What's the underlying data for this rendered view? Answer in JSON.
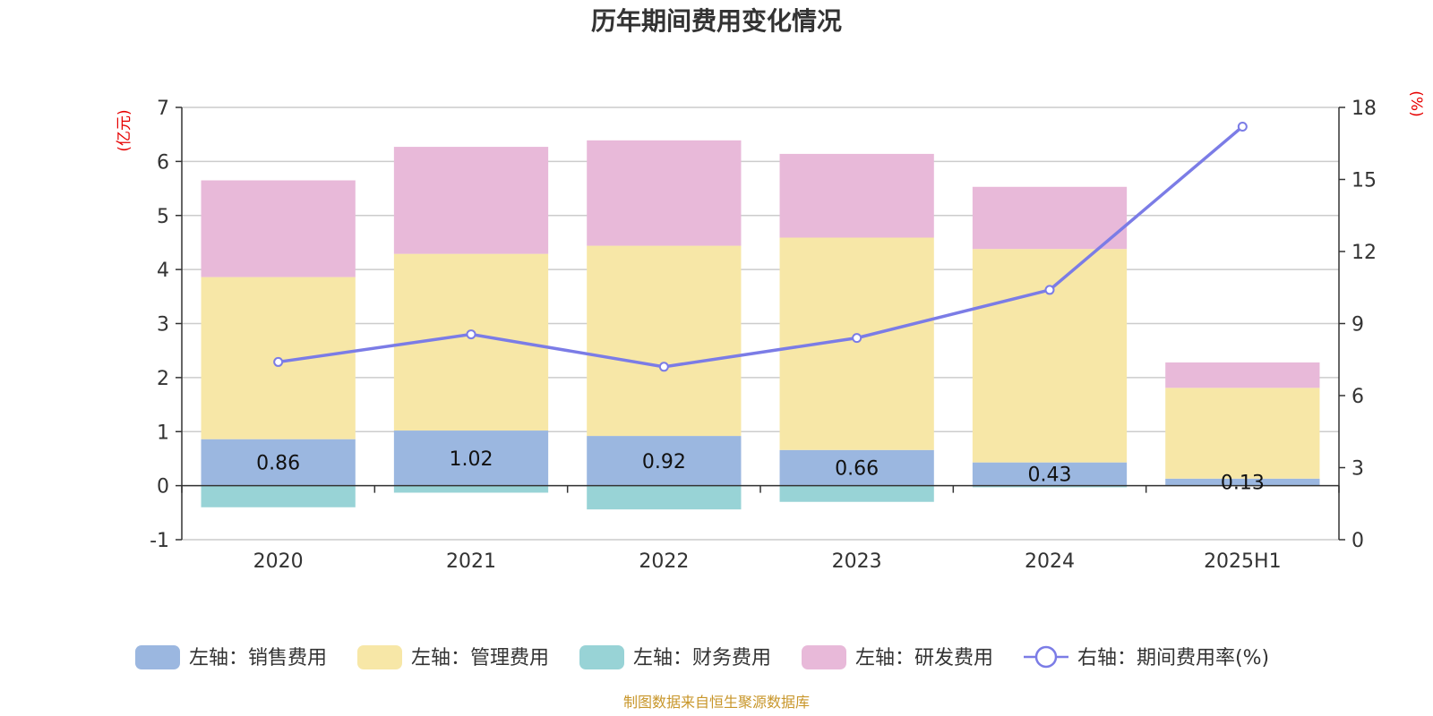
{
  "chart_data": {
    "type": "bar",
    "title": "历年期间费用变化情况",
    "categories": [
      "2020",
      "2021",
      "2022",
      "2023",
      "2024",
      "2025H1"
    ],
    "stacked": true,
    "left_axis": {
      "unit": "(亿元)",
      "ylim": [
        -1,
        7
      ],
      "ticks": [
        "-1",
        "0",
        "1",
        "2",
        "3",
        "4",
        "5",
        "6",
        "7"
      ]
    },
    "right_axis": {
      "unit": "(%)",
      "ylim": [
        0,
        18
      ],
      "ticks": [
        "0",
        "3",
        "6",
        "9",
        "12",
        "15",
        "18"
      ]
    },
    "series": [
      {
        "name": "左轴：销售费用",
        "type": "bar",
        "axis": "left",
        "color": "#9bb7e0",
        "values": [
          0.86,
          1.02,
          0.92,
          0.66,
          0.43,
          0.13
        ],
        "labels": [
          "0.86",
          "1.02",
          "0.92",
          "0.66",
          "0.43",
          "0.13"
        ]
      },
      {
        "name": "左轴：管理费用",
        "type": "bar",
        "axis": "left",
        "color": "#f7e7a7",
        "values": [
          3.0,
          3.27,
          3.52,
          3.93,
          3.95,
          1.68
        ]
      },
      {
        "name": "左轴：财务费用",
        "type": "bar",
        "axis": "left",
        "color": "#98d3d6",
        "values": [
          -0.4,
          -0.13,
          -0.44,
          -0.3,
          -0.03,
          0.0
        ]
      },
      {
        "name": "左轴：研发费用",
        "type": "bar",
        "axis": "left",
        "color": "#e8b9d9",
        "values": [
          1.79,
          1.98,
          1.95,
          1.55,
          1.15,
          0.47
        ]
      },
      {
        "name": "右轴：期间费用率(%)",
        "type": "line",
        "axis": "right",
        "color": "#7b7ce6",
        "values": [
          7.4,
          8.55,
          7.2,
          8.4,
          10.4,
          17.2
        ]
      }
    ],
    "grid": true,
    "legend_position": "bottom",
    "source_note": "制图数据来自恒生聚源数据库"
  }
}
